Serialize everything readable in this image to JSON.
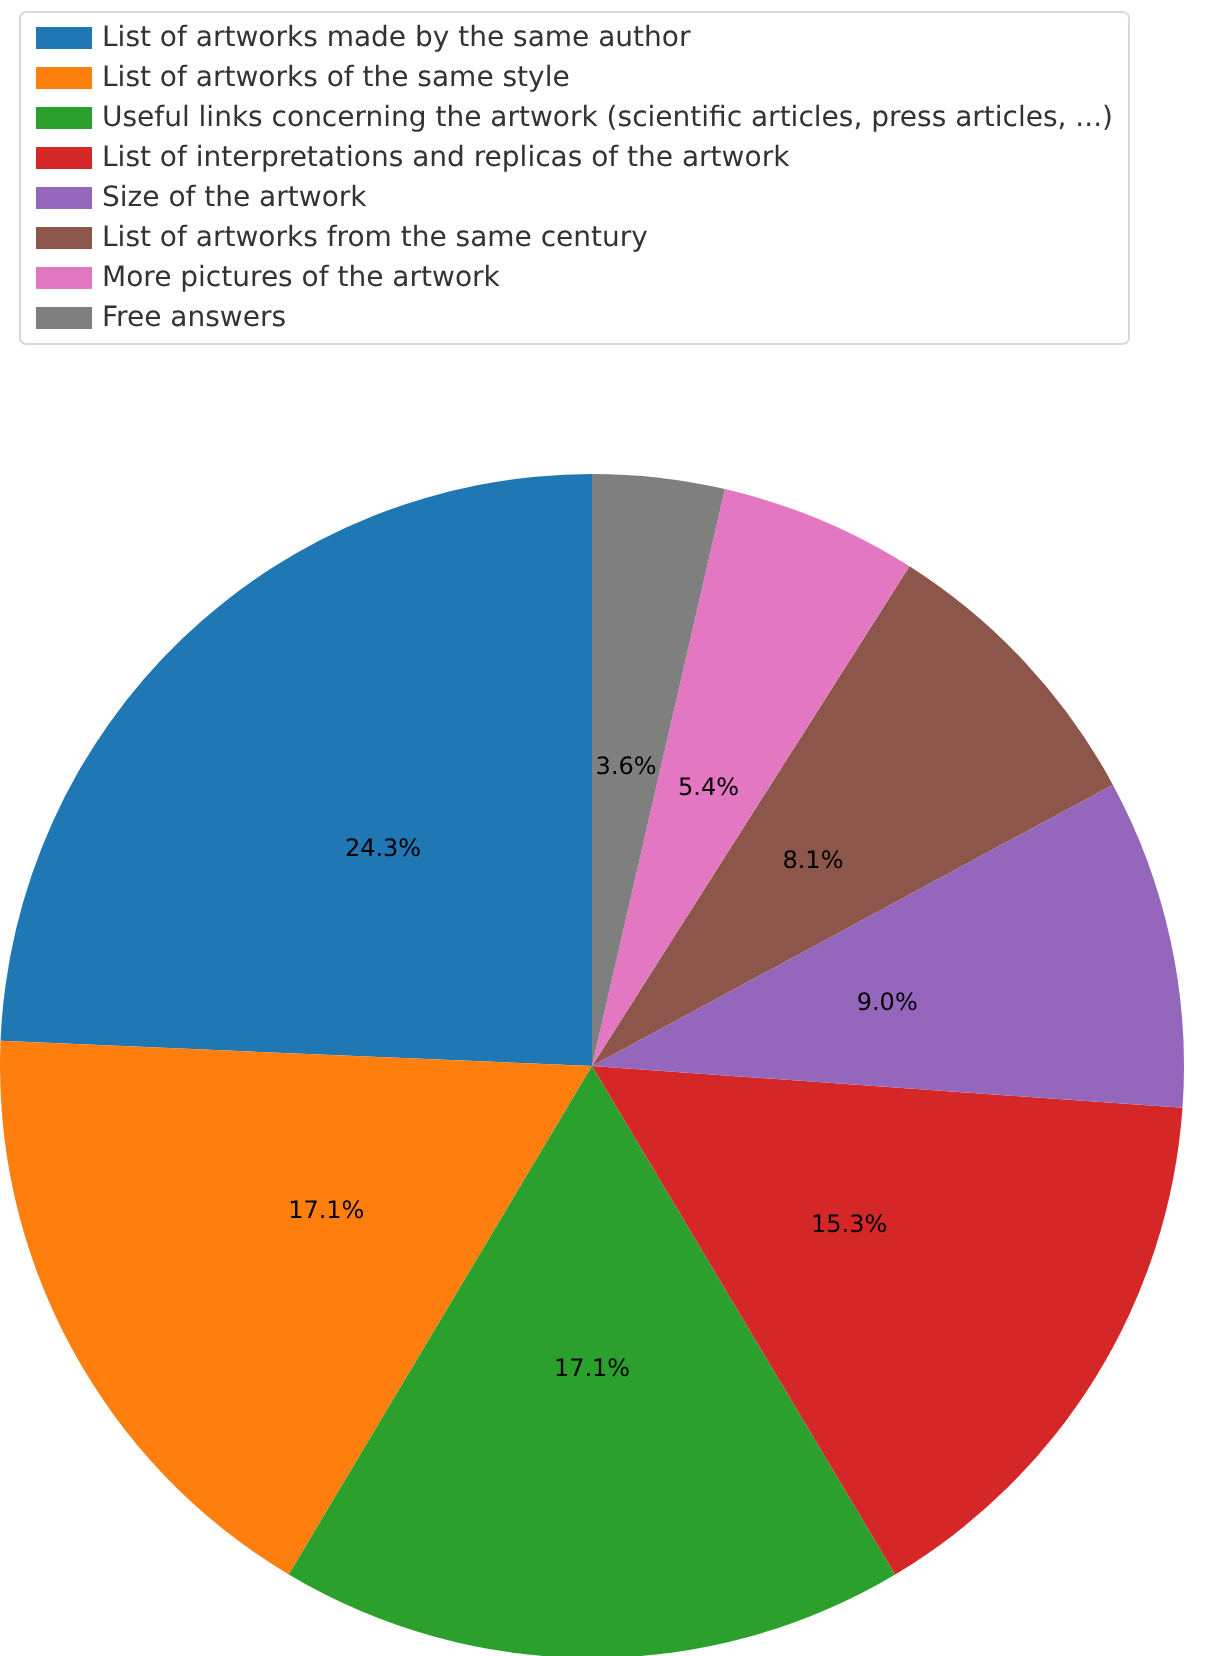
{
  "chart_data": {
    "type": "pie",
    "categories": [
      "List of artworks made by the same author",
      "List of artworks of the same style",
      "Useful links concerning the artwork (scientific articles, press articles, ...)",
      "List of interpretations and replicas of the artwork",
      "Size of the artwork",
      "List of artworks from the same century",
      "More pictures of the artwork",
      "Free answers"
    ],
    "values": [
      24.3,
      17.1,
      17.1,
      15.3,
      9.0,
      8.1,
      5.4,
      3.6
    ],
    "value_labels": [
      "24.3%",
      "17.1%",
      "17.1%",
      "15.3%",
      "9.0%",
      "8.1%",
      "5.4%",
      "3.6%"
    ],
    "colors": [
      "#1f77b4",
      "#ff7f0e",
      "#2ca02c",
      "#d62728",
      "#9467bd",
      "#8c564b",
      "#e377c2",
      "#7f7f7f"
    ],
    "legend": "top"
  }
}
